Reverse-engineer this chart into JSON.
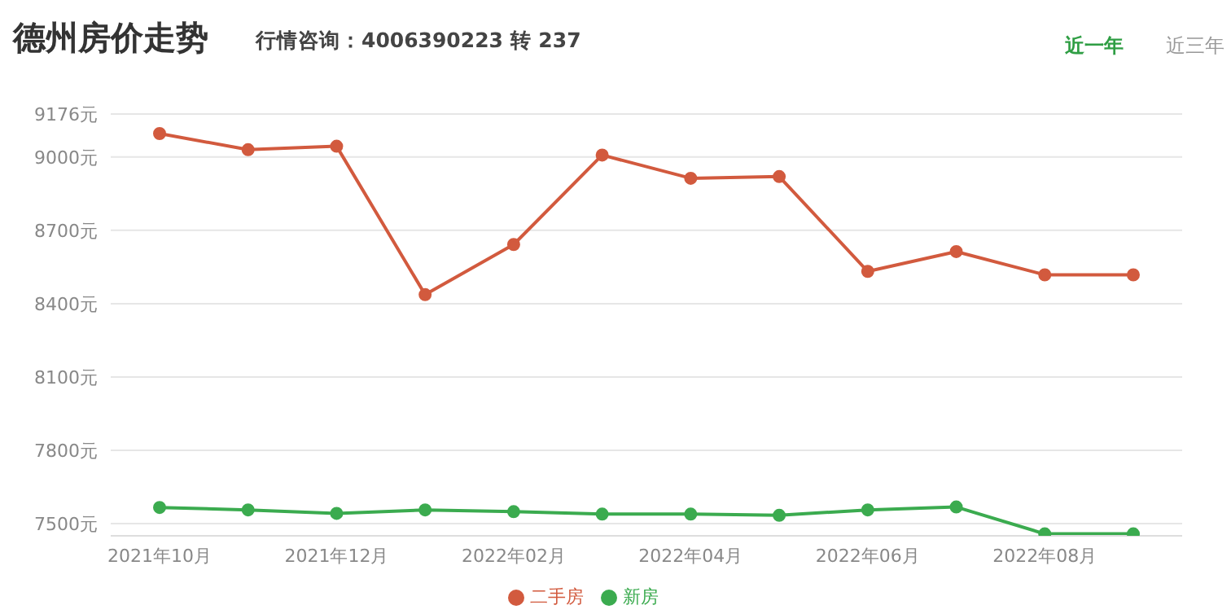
{
  "chart_data": {
    "type": "line",
    "title": "德州房价走势",
    "subtitle": "行情咨询：4006390223 转 237",
    "annotations": [
      "近一年",
      "近三年"
    ],
    "categories": [
      "2021年10月",
      null,
      "2021年12月",
      null,
      "2022年02月",
      null,
      "2022年04月",
      null,
      "2022年06月",
      null,
      "2022年08月",
      null
    ],
    "series": [
      {
        "name": "新房",
        "color": "#3bab4f",
        "values": [
          7566,
          7556,
          7542,
          7556,
          7549,
          7539,
          7539,
          7534,
          7556,
          7568,
          7458,
          7458
        ]
      },
      {
        "name": "二手房",
        "color": "#d25a3e",
        "values": [
          9096,
          9030,
          9044,
          8437,
          8642,
          9008,
          8913,
          8920,
          8532,
          8613,
          8518,
          8518
        ]
      }
    ],
    "ylim": [
      7450,
      9176
    ],
    "yticks": [
      {
        "value": 7500,
        "label": "7500元"
      },
      {
        "value": 7800,
        "label": "7800元"
      },
      {
        "value": 8100,
        "label": "8100元"
      },
      {
        "value": 8400,
        "label": "8400元"
      },
      {
        "value": 8700,
        "label": "8700元"
      },
      {
        "value": 9000,
        "label": "9000元"
      },
      {
        "value": 9176,
        "label": "9176元"
      }
    ],
    "grid": "y",
    "legend": "bottom",
    "marker": "circle",
    "line_style": "solid"
  }
}
